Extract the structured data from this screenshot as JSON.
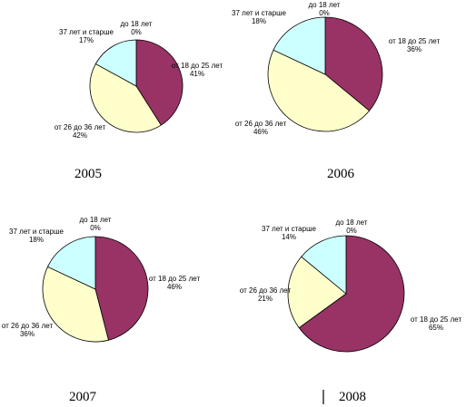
{
  "colors": {
    "age_0_18": "#ffffff",
    "age_18_25": "#993366",
    "age_26_36": "#ffffcc",
    "age_37_plus": "#ccffff"
  },
  "chart_data": [
    {
      "type": "pie",
      "title": "2005",
      "slices": [
        {
          "label": "до 18 лет",
          "value": 0,
          "value_label": "0%",
          "color_key": "age_0_18"
        },
        {
          "label": "от 18 до 25 лет",
          "value": 41,
          "value_label": "41%",
          "color_key": "age_18_25"
        },
        {
          "label": "от 26 до 36 лет",
          "value": 42,
          "value_label": "42%",
          "color_key": "age_26_36"
        },
        {
          "label": "37 лет и старше",
          "value": 17,
          "value_label": "17%",
          "color_key": "age_37_plus"
        }
      ]
    },
    {
      "type": "pie",
      "title": "2006",
      "slices": [
        {
          "label": "до 18 лет",
          "value": 0,
          "value_label": "0%",
          "color_key": "age_0_18"
        },
        {
          "label": "от 18 до 25 лет",
          "value": 36,
          "value_label": "36%",
          "color_key": "age_18_25"
        },
        {
          "label": "от 26 до 36 лет",
          "value": 46,
          "value_label": "46%",
          "color_key": "age_26_36"
        },
        {
          "label": "37 лет и старше",
          "value": 18,
          "value_label": "18%",
          "color_key": "age_37_plus"
        }
      ]
    },
    {
      "type": "pie",
      "title": "2007",
      "slices": [
        {
          "label": "до 18 лет",
          "value": 0,
          "value_label": "0%",
          "color_key": "age_0_18"
        },
        {
          "label": "от 18 до 25 лет",
          "value": 46,
          "value_label": "46%",
          "color_key": "age_18_25"
        },
        {
          "label": "от 26 до 36 лет",
          "value": 36,
          "value_label": "36%",
          "color_key": "age_26_36"
        },
        {
          "label": "37 лет и старше",
          "value": 18,
          "value_label": "18%",
          "color_key": "age_37_plus"
        }
      ]
    },
    {
      "type": "pie",
      "title": "2008",
      "slices": [
        {
          "label": "до 18 лет",
          "value": 0,
          "value_label": "0%",
          "color_key": "age_0_18"
        },
        {
          "label": "от 18 до 25 лет",
          "value": 65,
          "value_label": "65%",
          "color_key": "age_18_25"
        },
        {
          "label": "от 26 до 36 лет",
          "value": 21,
          "value_label": "21%",
          "color_key": "age_26_36"
        },
        {
          "label": "37 лет и старше",
          "value": 14,
          "value_label": "14%",
          "color_key": "age_37_plus"
        }
      ]
    }
  ]
}
